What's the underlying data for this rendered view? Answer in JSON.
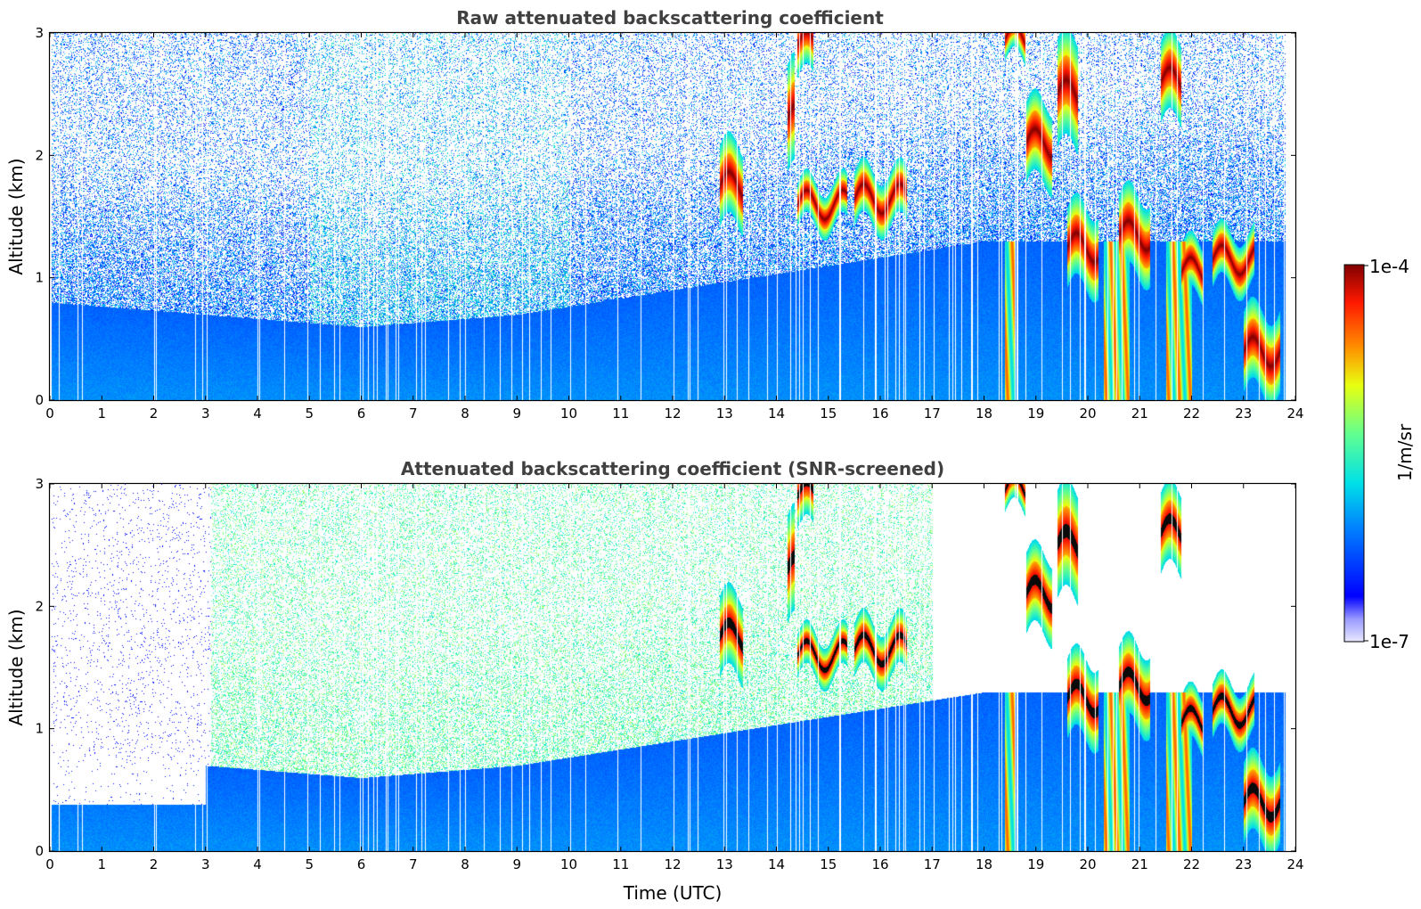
{
  "chart_data": [
    {
      "type": "heatmap",
      "title": "Raw attenuated backscattering coefficient",
      "xlabel": "",
      "ylabel": "Altitude (km)",
      "xlim": [
        0,
        24
      ],
      "ylim": [
        0,
        3
      ],
      "xticks": [
        "0",
        "1",
        "2",
        "3",
        "4",
        "5",
        "6",
        "7",
        "8",
        "9",
        "10",
        "11",
        "12",
        "13",
        "14",
        "15",
        "16",
        "17",
        "18",
        "19",
        "20",
        "21",
        "22",
        "23",
        "24"
      ],
      "yticks": [
        "0",
        "1",
        "2",
        "3"
      ],
      "screened": false,
      "features": {
        "boundary_layer_top_km": [
          {
            "t": 0,
            "h": 0.8
          },
          {
            "t": 3,
            "h": 0.7
          },
          {
            "t": 6,
            "h": 0.6
          },
          {
            "t": 9,
            "h": 0.7
          },
          {
            "t": 12,
            "h": 0.9
          },
          {
            "t": 15,
            "h": 1.1
          },
          {
            "t": 18,
            "h": 1.3
          }
        ],
        "cloud_layers": [
          {
            "t0": 12.9,
            "t1": 13.35,
            "h": 1.75,
            "dh": 0.15
          },
          {
            "t0": 14.4,
            "t1": 15.35,
            "h": 1.6,
            "dh": 0.08
          },
          {
            "t0": 15.5,
            "t1": 16.5,
            "h": 1.65,
            "dh": 0.1
          },
          {
            "t0": 14.2,
            "t1": 14.35,
            "h": 2.3,
            "dh": 0.2
          },
          {
            "t0": 14.4,
            "t1": 14.7,
            "h": 2.9,
            "dh": 0.12
          },
          {
            "t0": 18.4,
            "t1": 18.8,
            "h": 2.95,
            "dh": 0.08
          },
          {
            "t0": 18.8,
            "t1": 19.3,
            "h": 2.1,
            "dh": 0.15
          },
          {
            "t0": 19.4,
            "t1": 19.8,
            "h": 2.5,
            "dh": 0.2
          },
          {
            "t0": 19.6,
            "t1": 20.2,
            "h": 1.25,
            "dh": 0.15
          },
          {
            "t0": 20.6,
            "t1": 21.2,
            "h": 1.35,
            "dh": 0.15
          },
          {
            "t0": 21.4,
            "t1": 21.8,
            "h": 2.6,
            "dh": 0.15
          },
          {
            "t0": 21.8,
            "t1": 22.2,
            "h": 1.05,
            "dh": 0.1
          },
          {
            "t0": 22.4,
            "t1": 23.2,
            "h": 1.15,
            "dh": 0.1
          },
          {
            "t0": 23.0,
            "t1": 23.7,
            "h": 0.4,
            "dh": 0.15
          }
        ],
        "precipitation_fallstreaks": [
          {
            "t0": 18.4,
            "t1": 18.6
          },
          {
            "t0": 20.3,
            "t1": 20.8
          },
          {
            "t0": 21.5,
            "t1": 22.0
          }
        ]
      }
    },
    {
      "type": "heatmap",
      "title": "Attenuated backscattering coefficient (SNR-screened)",
      "xlabel": "Time (UTC)",
      "ylabel": "Altitude (km)",
      "xlim": [
        0,
        24
      ],
      "ylim": [
        0,
        3
      ],
      "xticks": [
        "0",
        "1",
        "2",
        "3",
        "4",
        "5",
        "6",
        "7",
        "8",
        "9",
        "10",
        "11",
        "12",
        "13",
        "14",
        "15",
        "16",
        "17",
        "18",
        "19",
        "20",
        "21",
        "22",
        "23",
        "24"
      ],
      "yticks": [
        "0",
        "1",
        "2",
        "3"
      ],
      "screened": true
    }
  ],
  "colorbar": {
    "label": "1/m/sr",
    "min_label": "1e-7",
    "max_label": "1e-4",
    "min": 1e-07,
    "max": 0.0001,
    "scale": "log",
    "colormap": "jet"
  }
}
